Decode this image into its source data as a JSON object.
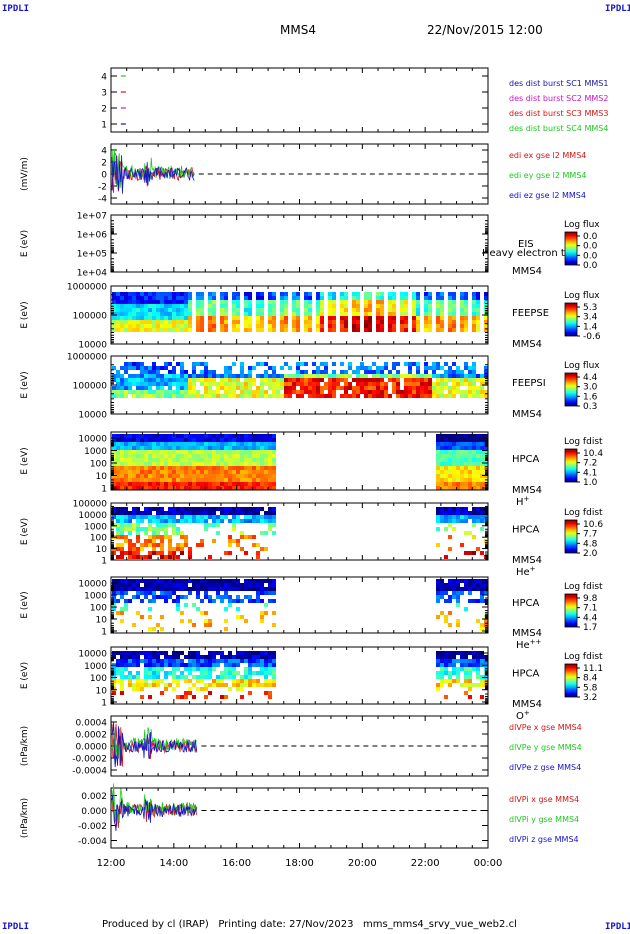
{
  "header": {
    "corner_label": "IPDLI",
    "spacecraft": "MMS4",
    "date": "22/Nov/2015 12:00"
  },
  "footer": {
    "text": "Produced by cl (IRAP)   Printing date: 27/Nov/2023   mms_mms4_srvy_vue_web2.cl"
  },
  "colors": {
    "red": "#d21414",
    "green": "#1ec81e",
    "blue": "#1414c8",
    "magenta": "#c814c8",
    "navy": "#1414a0"
  },
  "chart_data": [
    {
      "type": "line",
      "panel": "burst",
      "ylabel": "",
      "yticks": [
        "4",
        "3",
        "2",
        "1"
      ],
      "ylim": [
        0.5,
        4.5
      ],
      "legend": [
        "des dist burst SC1 MMS1",
        "des dist burst SC2 MMS2",
        "des dist burst SC3 MMS3",
        "des dist burst SC4 MMS4"
      ],
      "series": [
        {
          "name": "des dist burst SC4 MMS4",
          "x": [
            "12:15",
            "12:25"
          ],
          "y": [
            4,
            4
          ]
        },
        {
          "name": "des dist burst SC3 MMS3",
          "x": [
            "12:15",
            "12:25"
          ],
          "y": [
            3,
            3
          ]
        },
        {
          "name": "des dist burst SC2 MMS2",
          "x": [
            "12:15",
            "12:25"
          ],
          "y": [
            2,
            2
          ]
        },
        {
          "name": "des dist burst SC1 MMS1",
          "x": [
            "12:15",
            "12:25"
          ],
          "y": [
            1,
            1
          ]
        }
      ]
    },
    {
      "type": "line",
      "panel": "edi",
      "ylabel": "(mV/m)",
      "yticks": [
        "4",
        "2",
        "0",
        "-2",
        "-4"
      ],
      "ylim": [
        -5,
        5
      ],
      "legend": [
        "edi ex gse l2 MMS4",
        "edi ey gse l2 MMS4",
        "edi ez gse l2 MMS4"
      ],
      "data_end": "14:40"
    },
    {
      "type": "heatmap",
      "panel": "eis",
      "ylabel": "E (eV)",
      "yticks": [
        "1e+07",
        "1e+06",
        "1e+05",
        "1e+04"
      ],
      "ylim": [
        10000,
        10000000
      ],
      "side_label": "EIS",
      "overlap_text": "Heavy electron to",
      "instrument": "MMS4",
      "colorbar": {
        "label": "Log flux",
        "ticks": [
          "0.0",
          "0.0",
          "0.0",
          "0.0"
        ]
      }
    },
    {
      "type": "heatmap",
      "panel": "feeps_e",
      "ylabel": "E (eV)",
      "yticks": [
        "1000000",
        "100000",
        "10000"
      ],
      "ylim": [
        10000,
        1000000
      ],
      "side_label": "FEEPSE",
      "instrument": "MMS4",
      "colorbar": {
        "label": "Log flux",
        "ticks": [
          "5.3",
          "3.4",
          "1.4",
          "-0.6"
        ]
      }
    },
    {
      "type": "heatmap",
      "panel": "feeps_i",
      "ylabel": "E (eV)",
      "yticks": [
        "1000000",
        "100000",
        "10000"
      ],
      "ylim": [
        10000,
        1000000
      ],
      "side_label": "FEEPSI",
      "instrument": "MMS4",
      "colorbar": {
        "label": "Log flux",
        "ticks": [
          "4.4",
          "3.0",
          "1.6",
          "0.3"
        ]
      }
    },
    {
      "type": "heatmap",
      "panel": "hpca_h",
      "ylabel": "E (eV)",
      "yticks": [
        "10000",
        "1000",
        "100",
        "10",
        "1"
      ],
      "ylim": [
        1,
        40000
      ],
      "side_label": "HPCA",
      "instrument": "MMS4",
      "species": "H",
      "species_sup": "+",
      "data_gap": [
        "17:15",
        "22:15"
      ],
      "colorbar": {
        "label": "Log fdist",
        "ticks": [
          "10.4",
          "7.2",
          "4.1",
          "1.0"
        ]
      }
    },
    {
      "type": "heatmap",
      "panel": "hpca_he1",
      "ylabel": "E (eV)",
      "yticks": [
        "100000",
        "10000",
        "1000",
        "100",
        "10",
        "1"
      ],
      "ylim": [
        1,
        100000
      ],
      "side_label": "HPCA",
      "instrument": "MMS4",
      "species": "He",
      "species_sup": "+",
      "data_gap": [
        "17:15",
        "22:15"
      ],
      "colorbar": {
        "label": "Log fdist",
        "ticks": [
          "10.6",
          "7.7",
          "4.8",
          "2.0"
        ]
      }
    },
    {
      "type": "heatmap",
      "panel": "hpca_he2",
      "ylabel": "E (eV)",
      "yticks": [
        "10000",
        "1000",
        "100",
        "10",
        "1"
      ],
      "ylim": [
        1,
        40000
      ],
      "side_label": "HPCA",
      "instrument": "MMS4",
      "species": "He",
      "species_sup": "++",
      "data_gap": [
        "17:15",
        "22:15"
      ],
      "colorbar": {
        "label": "Log fdist",
        "ticks": [
          "9.8",
          "7.1",
          "4.4",
          "1.7"
        ]
      }
    },
    {
      "type": "heatmap",
      "panel": "hpca_o",
      "ylabel": "E (eV)",
      "yticks": [
        "10000",
        "1000",
        "100",
        "10",
        "1"
      ],
      "ylim": [
        1,
        40000
      ],
      "side_label": "HPCA",
      "instrument": "MMS4",
      "species": "O",
      "species_sup": "+",
      "data_gap": [
        "17:15",
        "22:15"
      ],
      "colorbar": {
        "label": "Log fdist",
        "ticks": [
          "11.1",
          "8.4",
          "5.8",
          "3.2"
        ]
      }
    },
    {
      "type": "line",
      "panel": "divpe",
      "ylabel": "(nPa/km)",
      "yticks": [
        "0.0004",
        "0.0002",
        "0.0000",
        "-0.0002",
        "-0.0004"
      ],
      "ylim": [
        -0.0005,
        0.0005
      ],
      "legend": [
        "dlVPe x gse MMS4",
        "dlVPe y gse MMS4",
        "dlVPe z gse MMS4"
      ],
      "data_end": "14:45"
    },
    {
      "type": "line",
      "panel": "divpi",
      "ylabel": "(nPa/km)",
      "yticks": [
        "0.002",
        "0.000",
        "-0.002",
        "-0.004"
      ],
      "ylim": [
        -0.005,
        0.003
      ],
      "legend": [
        "dlVPi x gse MMS4",
        "dlVPi y gse MMS4",
        "dlVPi z gse MMS4"
      ],
      "data_end": "14:45"
    }
  ],
  "xaxis": {
    "ticks": [
      "12:00",
      "14:00",
      "16:00",
      "18:00",
      "20:00",
      "22:00",
      "00:00"
    ],
    "range": [
      "12:00",
      "00:00"
    ]
  }
}
